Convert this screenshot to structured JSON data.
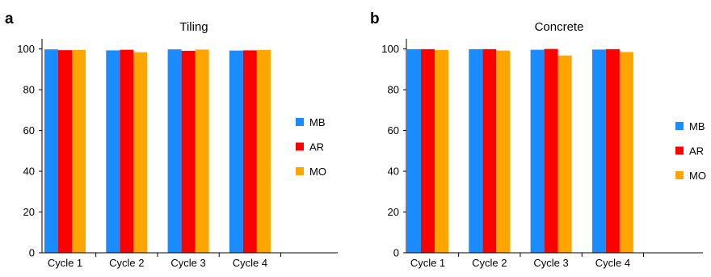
{
  "chart_data": [
    {
      "type": "bar",
      "panel_label": "a",
      "title": "Tiling",
      "categories": [
        "Cycle 1",
        "Cycle 2",
        "Cycle 3",
        "Cycle 4"
      ],
      "series": [
        {
          "name": "MB",
          "color": "#1a8cff",
          "values": [
            99.8,
            99.3,
            99.8,
            99.2
          ]
        },
        {
          "name": "AR",
          "color": "#ff0000",
          "values": [
            99.4,
            99.6,
            99.1,
            99.3
          ]
        },
        {
          "name": "MO",
          "color": "#ffa500",
          "values": [
            99.5,
            98.4,
            99.7,
            99.5
          ]
        }
      ],
      "yticks": [
        0,
        20,
        40,
        60,
        80,
        100
      ],
      "ylim": [
        0,
        105
      ],
      "xlabel": "",
      "ylabel": "",
      "grid": false,
      "legend_position": "right"
    },
    {
      "type": "bar",
      "panel_label": "b",
      "title": "Concrete",
      "categories": [
        "Cycle 1",
        "Cycle 2",
        "Cycle 3",
        "Cycle 4"
      ],
      "series": [
        {
          "name": "MB",
          "color": "#1a8cff",
          "values": [
            99.9,
            99.9,
            99.6,
            99.7
          ]
        },
        {
          "name": "AR",
          "color": "#ff0000",
          "values": [
            99.9,
            99.9,
            100.0,
            99.9
          ]
        },
        {
          "name": "MO",
          "color": "#ffa500",
          "values": [
            99.5,
            99.2,
            96.8,
            98.5
          ]
        }
      ],
      "yticks": [
        0,
        20,
        40,
        60,
        80,
        100
      ],
      "ylim": [
        0,
        105
      ],
      "xlabel": "",
      "ylabel": "",
      "grid": false,
      "legend_position": "right"
    }
  ]
}
